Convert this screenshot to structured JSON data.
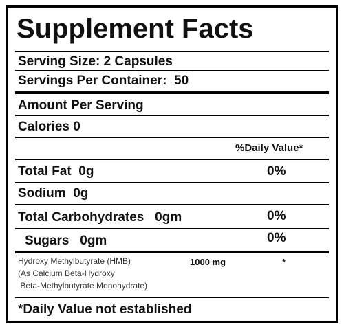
{
  "title": "Supplement Facts",
  "serving_size": "Serving Size: 2 Capsules",
  "servings_per_container": "Servings Per Container:  50",
  "amount_header": "Amount Per Serving",
  "calories": "Calories 0",
  "daily_value_header": "%Daily Value*",
  "nutrients": [
    {
      "name": "Total Fat  0g",
      "dv": "0%"
    },
    {
      "name": "Sodium  0g"
    },
    {
      "name": "Total Carbohydrates   0gm",
      "dv": "0%"
    },
    {
      "name": "Sugars   0gm",
      "dv": "0%"
    }
  ],
  "ingredient": {
    "lines": [
      "Hydroxy Methylbutyrate (HMB)",
      "(As Calcium Beta-Hydroxy",
      " Beta-Methylbutyrate Monohydrate)"
    ],
    "amount": "1000 mg",
    "dv": "*"
  },
  "footnote": "*Daily Value not established"
}
